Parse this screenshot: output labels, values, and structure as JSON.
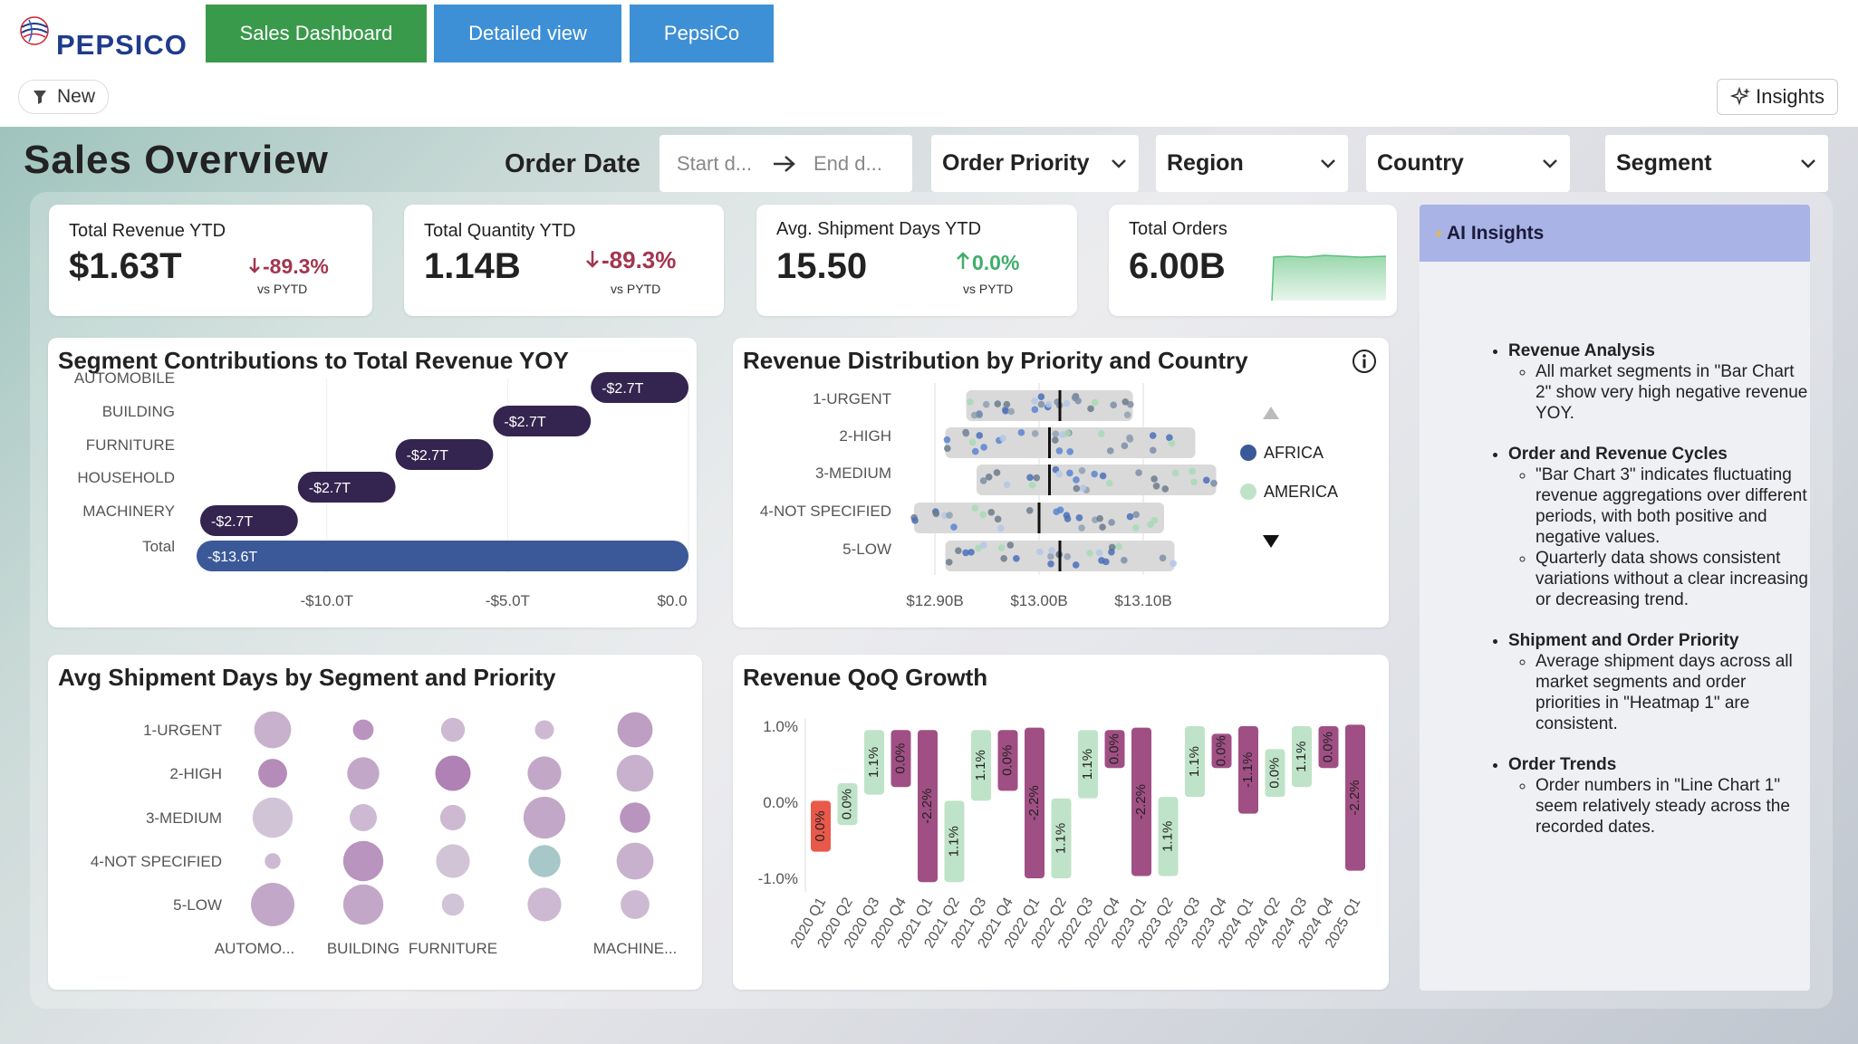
{
  "brand": {
    "name": "PEPSICO"
  },
  "nav": {
    "sales_dashboard": "Sales Dashboard",
    "detailed_view": "Detailed view",
    "pepsico": "PepsiCo"
  },
  "toolbar": {
    "filter_label": "New",
    "insights_label": "Insights"
  },
  "header": {
    "title": "Sales Overview",
    "order_date_label": "Order Date",
    "start_placeholder": "Start d...",
    "end_placeholder": "End d...",
    "filters": [
      "Order Priority",
      "Region",
      "Country",
      "Segment"
    ]
  },
  "kpis": [
    {
      "label": "Total Revenue YTD",
      "value": "$1.63T",
      "delta": "-89.3%",
      "vs": "vs PYTD",
      "direction": "down"
    },
    {
      "label": "Total Quantity YTD",
      "value": "1.14B",
      "delta": "-89.3%",
      "vs": "vs PYTD",
      "direction": "down"
    },
    {
      "label": "Avg. Shipment Days YTD",
      "value": "15.50",
      "delta": "0.0%",
      "vs": "vs PYTD",
      "direction": "up"
    },
    {
      "label": "Total Orders",
      "value": "6.00B"
    }
  ],
  "colors": {
    "down": "#a3364f",
    "up": "#3fae6a",
    "nav_green": "#3a9a4c",
    "nav_blue": "#3d8fd6",
    "dark_bar": "#33254f",
    "total_bar": "#3b5998",
    "pos_green": "#bfe3c8",
    "neg_purple": "#a04f84",
    "first_red": "#e8594a"
  },
  "chart_data": [
    {
      "type": "bar",
      "title": "Segment Contributions to Total Revenue YOY",
      "categories": [
        "AUTOMOBILE",
        "BUILDING",
        "FURNITURE",
        "HOUSEHOLD",
        "MACHINERY",
        "Total"
      ],
      "values": [
        -2.7,
        -2.7,
        -2.7,
        -2.7,
        -2.7,
        -13.6
      ],
      "data_labels": [
        "-$2.7T",
        "-$2.7T",
        "-$2.7T",
        "-$2.7T",
        "-$2.7T",
        "-$13.6T"
      ],
      "x_ticks": [
        "-$10.0T",
        "-$5.0T",
        "$0.0"
      ],
      "xlim": [
        -13.6,
        0
      ],
      "orientation": "horizontal-waterfall"
    },
    {
      "type": "scatter",
      "title": "Revenue Distribution by Priority and Country",
      "categories": [
        "1-URGENT",
        "2-HIGH",
        "3-MEDIUM",
        "4-NOT SPECIFIED",
        "5-LOW"
      ],
      "x_ticks": [
        "$12.90B",
        "$13.00B",
        "$13.10B"
      ],
      "xlim": [
        12.88,
        13.18
      ],
      "ranges": [
        [
          12.93,
          13.09
        ],
        [
          12.91,
          13.15
        ],
        [
          12.94,
          13.17
        ],
        [
          12.88,
          13.12
        ],
        [
          12.91,
          13.13
        ]
      ],
      "medians": [
        13.02,
        13.01,
        13.01,
        13.0,
        13.02
      ],
      "legend": [
        "AFRICA",
        "AMERICA"
      ],
      "legend_position": "right"
    },
    {
      "type": "heatmap",
      "title": "Avg Shipment Days by Segment and Priority",
      "rows": [
        "1-URGENT",
        "2-HIGH",
        "3-MEDIUM",
        "4-NOT SPECIFIED",
        "5-LOW"
      ],
      "columns": [
        "AUTOMO...",
        "BUILDING",
        "FURNITURE",
        "",
        "MACHINE..."
      ],
      "sizes": [
        [
          0.8,
          0.3,
          0.4,
          0.25,
          0.75
        ],
        [
          0.55,
          0.65,
          0.75,
          0.7,
          0.8
        ],
        [
          0.9,
          0.5,
          0.45,
          0.95,
          0.6
        ],
        [
          0.15,
          0.9,
          0.7,
          0.65,
          0.8
        ],
        [
          1.0,
          0.9,
          0.35,
          0.7,
          0.55
        ]
      ],
      "shades": [
        [
          0.3,
          0.6,
          0.2,
          0.2,
          0.5
        ],
        [
          0.7,
          0.4,
          0.8,
          0.4,
          0.3
        ],
        [
          0.1,
          0.2,
          0.2,
          0.4,
          0.6
        ],
        [
          0.2,
          0.6,
          0.1,
          0.0,
          0.3
        ],
        [
          0.4,
          0.4,
          0.1,
          0.2,
          0.2
        ]
      ]
    },
    {
      "type": "bar",
      "title": "Revenue QoQ Growth",
      "categories": [
        "2020 Q1",
        "2020 Q2",
        "2020 Q3",
        "2020 Q4",
        "2021 Q1",
        "2021 Q2",
        "2021 Q3",
        "2021 Q4",
        "2022 Q1",
        "2022 Q2",
        "2022 Q3",
        "2022 Q4",
        "2023 Q1",
        "2023 Q2",
        "2023 Q3",
        "2023 Q4",
        "2024 Q1",
        "2024 Q2",
        "2024 Q3",
        "2024 Q4",
        "2025 Q1"
      ],
      "values": [
        0.0,
        0.0,
        1.1,
        0.0,
        -2.2,
        1.1,
        1.1,
        0.0,
        -2.2,
        1.1,
        1.1,
        0.0,
        -2.2,
        1.1,
        1.1,
        0.0,
        -1.1,
        0.0,
        1.1,
        0.0,
        -2.2
      ],
      "data_labels": [
        "0.0%",
        "0.0%",
        "1.1%",
        "0.0%",
        "-2.2%",
        "1.1%",
        "1.1%",
        "0.0%",
        "-2.2%",
        "1.1%",
        "1.1%",
        "0.0%",
        "-2.2%",
        "1.1%",
        "1.1%",
        "0.0%",
        "-1.1%",
        "0.0%",
        "1.1%",
        "0.0%",
        "-2.2%"
      ],
      "y_ticks": [
        "1.0%",
        "0.0%",
        "-1.0%"
      ],
      "ylim": [
        -1.2,
        1.2
      ]
    }
  ],
  "ai": {
    "title": "AI Insights",
    "sections": [
      {
        "heading": "Revenue Analysis",
        "items": [
          "All market segments in \"Bar Chart 2\" show very high negative revenue YOY."
        ]
      },
      {
        "heading": "Order and Revenue Cycles",
        "items": [
          "\"Bar Chart 3\" indicates fluctuating revenue aggregations over different periods, with both positive and negative values.",
          "Quarterly data shows consistent variations without a clear increasing or decreasing trend."
        ]
      },
      {
        "heading": "Shipment and Order Priority",
        "items": [
          "Average shipment days across all market segments and order priorities in \"Heatmap 1\" are consistent."
        ]
      },
      {
        "heading": "Order Trends",
        "items": [
          "Order numbers in \"Line Chart 1\" seem relatively steady across the recorded dates."
        ]
      }
    ]
  }
}
